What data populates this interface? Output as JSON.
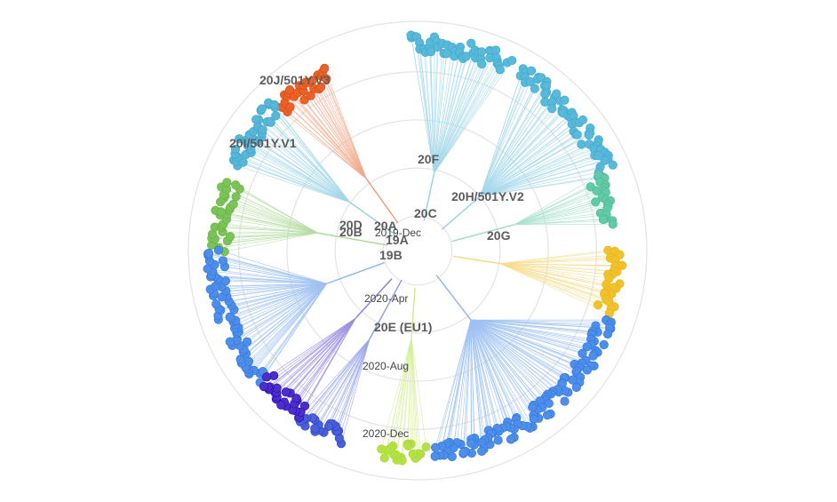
{
  "time_labels": [
    {
      "text": "2020-Apr",
      "r": 0.36,
      "deg": 98
    },
    {
      "text": "2020-Aug",
      "r": 0.57,
      "deg": 98
    },
    {
      "text": "2020-Dec",
      "r": 0.78,
      "deg": 98
    },
    {
      "text": "2019-Dec",
      "r": 0.13,
      "deg": 80
    }
  ],
  "clades": [
    {
      "label": "20J/501Y.V3",
      "color": "#e8632c",
      "from": 226,
      "to": 243,
      "tip": 0.9
    },
    {
      "label": "20I/501Y.V1",
      "color": "#59b6d6",
      "from": 205,
      "to": 226,
      "tip": 0.92
    },
    {
      "label": "20F",
      "color": "#5ab8d8",
      "from": 268,
      "to": 296,
      "tip": 0.94
    },
    {
      "label": "20C",
      "color": "#5ab8d8",
      "from": 300,
      "to": 338,
      "tip": 0.93
    },
    {
      "label": "20H/501Y.V2",
      "color": "#64c9a7",
      "from": 338,
      "to": 352,
      "tip": 0.88
    },
    {
      "label": "20G",
      "color": "#f0c231",
      "from": 0,
      "to": 18,
      "tip": 0.9
    },
    {
      "label": "20A",
      "color": "#7cc25a",
      "from": 180,
      "to": 200,
      "tip": 0.9
    },
    {
      "label": "20B",
      "color": "#4f8ee8",
      "from": 140,
      "to": 180,
      "tip": 0.92
    },
    {
      "label": "20D",
      "color": "#4b5fd8",
      "from": 112,
      "to": 125,
      "tip": 0.92
    },
    {
      "label": "20E (EU1)",
      "color": "#b5e04a",
      "from": 88,
      "to": 100,
      "tip": 0.92
    },
    {
      "label": "19A",
      "color": "#4f8ee8",
      "from": 20,
      "to": 85,
      "tip": 0.92
    },
    {
      "label": "19B",
      "color": "#4b2fc8",
      "from": 125,
      "to": 140,
      "tip": 0.9
    }
  ]
}
